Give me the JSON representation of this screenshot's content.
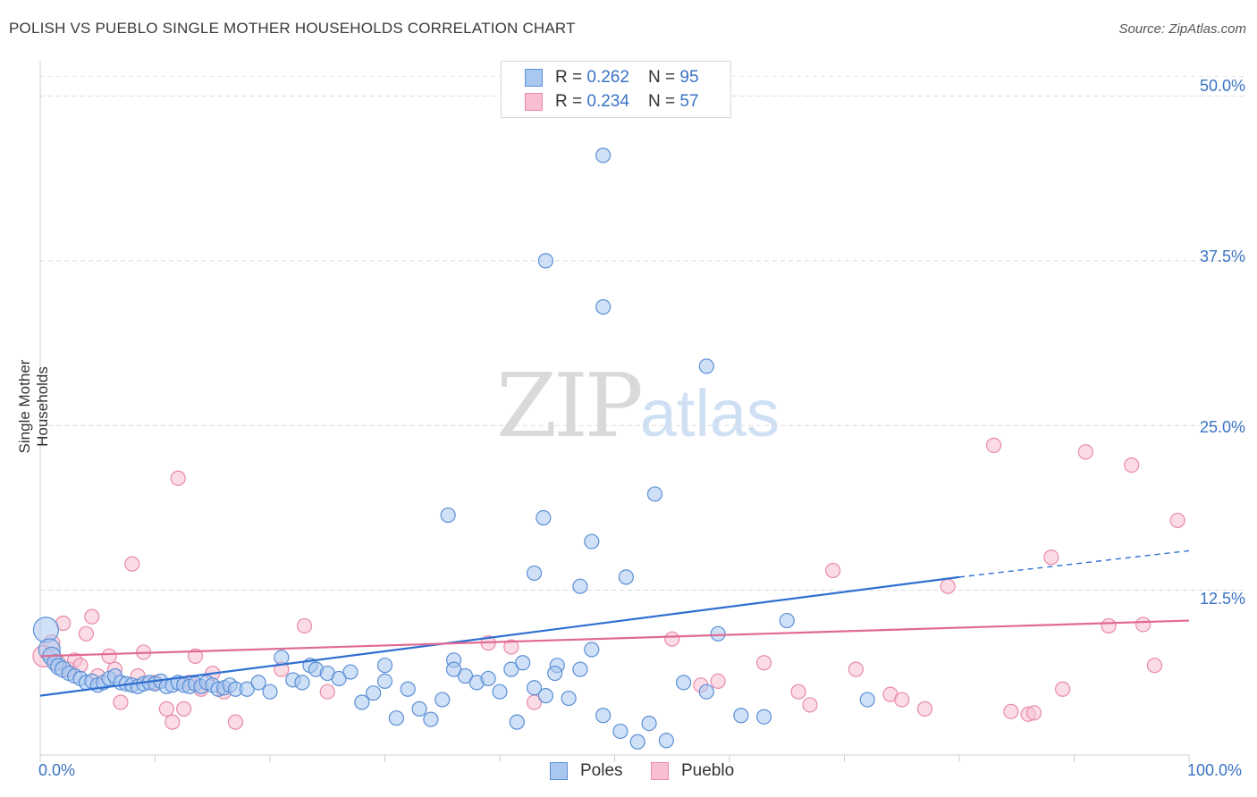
{
  "header": {
    "title": "POLISH VS PUEBLO SINGLE MOTHER HOUSEHOLDS CORRELATION CHART",
    "source": "Source: ZipAtlas.com"
  },
  "watermark": {
    "zip": "ZIP",
    "atlas": "atlas"
  },
  "legend": {
    "rows": [
      {
        "r_label": "R = ",
        "r_value": "0.262",
        "n_label": "N = ",
        "n_value": "95"
      },
      {
        "r_label": "R = ",
        "r_value": "0.234",
        "n_label": "N = ",
        "n_value": "57"
      }
    ],
    "bottom": [
      "Poles",
      "Pueblo"
    ]
  },
  "colors": {
    "poles_fill": "#a9c8f0",
    "poles_stroke": "#5b8fd6",
    "poles_line": "#2f6fd0",
    "pueblo_fill": "#f7bfcf",
    "pueblo_stroke": "#e98aa8",
    "pueblo_line": "#e06a92",
    "tick_text": "#3a73c4",
    "grid": "#dcdcdc"
  },
  "chart_data": {
    "type": "scatter",
    "title": "POLISH VS PUEBLO SINGLE MOTHER HOUSEHOLDS CORRELATION CHART",
    "xlabel": "",
    "ylabel": "Single Mother Households",
    "xlim": [
      0,
      100
    ],
    "ylim": [
      0,
      52
    ],
    "x_tick_labels": [
      "0.0%",
      "100.0%"
    ],
    "y_ticks": [
      12.5,
      25.0,
      37.5,
      50.0
    ],
    "y_tick_labels": [
      "12.5%",
      "25.0%",
      "37.5%",
      "50.0%"
    ],
    "grid": "dashed horizontal",
    "legend_placement": "top-center",
    "series": [
      {
        "name": "Poles",
        "trend": {
          "x": [
            0,
            80
          ],
          "y": [
            4.5,
            13.5
          ],
          "dashed_to": [
            100,
            15.5
          ]
        },
        "points": [
          [
            0.5,
            9.5,
            14
          ],
          [
            0.8,
            8.0,
            12
          ],
          [
            1.0,
            7.5,
            10
          ],
          [
            1.3,
            7.0,
            9
          ],
          [
            1.6,
            6.7,
            9
          ],
          [
            2.0,
            6.5,
            9
          ],
          [
            2.5,
            6.2,
            8
          ],
          [
            3.0,
            6.0,
            8
          ],
          [
            3.5,
            5.8,
            8
          ],
          [
            4.0,
            5.5,
            8
          ],
          [
            4.5,
            5.6,
            8
          ],
          [
            5.0,
            5.3,
            8
          ],
          [
            5.5,
            5.5,
            8
          ],
          [
            6.0,
            5.8,
            8
          ],
          [
            6.5,
            6.0,
            8
          ],
          [
            7.0,
            5.5,
            8
          ],
          [
            7.5,
            5.4,
            8
          ],
          [
            8.0,
            5.3,
            8
          ],
          [
            8.5,
            5.2,
            8
          ],
          [
            9.0,
            5.4,
            8
          ],
          [
            9.5,
            5.5,
            8
          ],
          [
            10.0,
            5.4,
            8
          ],
          [
            10.5,
            5.6,
            8
          ],
          [
            11.0,
            5.2,
            8
          ],
          [
            11.5,
            5.3,
            8
          ],
          [
            12.0,
            5.5,
            8
          ],
          [
            12.5,
            5.3,
            8
          ],
          [
            13.0,
            5.2,
            8
          ],
          [
            13.5,
            5.4,
            8
          ],
          [
            14.0,
            5.2,
            8
          ],
          [
            14.5,
            5.5,
            8
          ],
          [
            15.0,
            5.3,
            8
          ],
          [
            15.5,
            5.0,
            8
          ],
          [
            16.0,
            5.1,
            8
          ],
          [
            16.5,
            5.3,
            8
          ],
          [
            17.0,
            5.0,
            8
          ],
          [
            18.0,
            5.0,
            8
          ],
          [
            19.0,
            5.5,
            8
          ],
          [
            20.0,
            4.8,
            8
          ],
          [
            21.0,
            7.4,
            8
          ],
          [
            22.0,
            5.7,
            8
          ],
          [
            22.8,
            5.5,
            8
          ],
          [
            23.5,
            6.8,
            8
          ],
          [
            24.0,
            6.5,
            8
          ],
          [
            25.0,
            6.2,
            8
          ],
          [
            26.0,
            5.8,
            8
          ],
          [
            27.0,
            6.3,
            8
          ],
          [
            28.0,
            4.0,
            8
          ],
          [
            29.0,
            4.7,
            8
          ],
          [
            30.0,
            5.6,
            8
          ],
          [
            31.0,
            2.8,
            8
          ],
          [
            32.0,
            5.0,
            8
          ],
          [
            33.0,
            3.5,
            8
          ],
          [
            34.0,
            2.7,
            8
          ],
          [
            35.0,
            4.2,
            8
          ],
          [
            36.0,
            7.2,
            8
          ],
          [
            37.0,
            6.0,
            8
          ],
          [
            38.0,
            5.5,
            8
          ],
          [
            39.0,
            5.8,
            8
          ],
          [
            40.0,
            4.8,
            8
          ],
          [
            41.0,
            6.5,
            8
          ],
          [
            42.0,
            7.0,
            8
          ],
          [
            43.0,
            5.1,
            8
          ],
          [
            44.0,
            4.5,
            8
          ],
          [
            45.0,
            6.8,
            8
          ],
          [
            46.0,
            4.3,
            8
          ],
          [
            47.0,
            6.5,
            8
          ],
          [
            48.0,
            8.0,
            8
          ],
          [
            49.0,
            3.0,
            8
          ],
          [
            50.5,
            1.8,
            8
          ],
          [
            51.0,
            13.5,
            8
          ],
          [
            52.0,
            1.0,
            8
          ],
          [
            53.0,
            2.4,
            8
          ],
          [
            54.5,
            1.1,
            8
          ],
          [
            56.0,
            5.5,
            8
          ],
          [
            58.0,
            4.8,
            8
          ],
          [
            59.0,
            9.2,
            8
          ],
          [
            61.0,
            3.0,
            8
          ],
          [
            63.0,
            2.9,
            8
          ],
          [
            65.0,
            10.2,
            8
          ],
          [
            72.0,
            4.2,
            8
          ],
          [
            49.0,
            34.0,
            8
          ],
          [
            43.0,
            13.8,
            8
          ],
          [
            47.0,
            12.8,
            8
          ],
          [
            35.5,
            18.2,
            8
          ],
          [
            53.5,
            19.8,
            8
          ],
          [
            48.0,
            16.2,
            8
          ],
          [
            58.0,
            29.5,
            8
          ],
          [
            43.8,
            18.0,
            8
          ],
          [
            36.0,
            6.5,
            8
          ],
          [
            30.0,
            6.8,
            8
          ],
          [
            41.5,
            2.5,
            8
          ],
          [
            44.8,
            6.2,
            8
          ],
          [
            49.0,
            45.5,
            8
          ],
          [
            44.0,
            37.5,
            8
          ]
        ]
      },
      {
        "name": "Pueblo",
        "trend": {
          "x": [
            0,
            100
          ],
          "y": [
            7.5,
            10.2
          ]
        },
        "points": [
          [
            0.3,
            7.5,
            12
          ],
          [
            1.0,
            8.5,
            9
          ],
          [
            1.5,
            7.0,
            9
          ],
          [
            2.0,
            10.0,
            8
          ],
          [
            2.5,
            6.5,
            8
          ],
          [
            3.0,
            7.2,
            8
          ],
          [
            3.5,
            6.8,
            8
          ],
          [
            4.0,
            9.2,
            8
          ],
          [
            4.5,
            10.5,
            8
          ],
          [
            5.0,
            6.0,
            8
          ],
          [
            6.0,
            7.5,
            8
          ],
          [
            6.5,
            6.5,
            8
          ],
          [
            7.0,
            4.0,
            8
          ],
          [
            8.0,
            14.5,
            8
          ],
          [
            8.5,
            6.0,
            8
          ],
          [
            9.0,
            7.8,
            8
          ],
          [
            10.0,
            5.5,
            8
          ],
          [
            11.0,
            3.5,
            8
          ],
          [
            11.5,
            2.5,
            8
          ],
          [
            12.0,
            21.0,
            8
          ],
          [
            12.5,
            3.5,
            8
          ],
          [
            13.0,
            5.5,
            8
          ],
          [
            13.5,
            7.5,
            8
          ],
          [
            14.0,
            5.0,
            8
          ],
          [
            15.0,
            6.2,
            8
          ],
          [
            16.0,
            4.8,
            8
          ],
          [
            17.0,
            2.5,
            8
          ],
          [
            21.0,
            6.5,
            8
          ],
          [
            23.0,
            9.8,
            8
          ],
          [
            25.0,
            4.8,
            8
          ],
          [
            39.0,
            8.5,
            8
          ],
          [
            41.0,
            8.2,
            8
          ],
          [
            43.0,
            4.0,
            8
          ],
          [
            55.0,
            8.8,
            8
          ],
          [
            57.5,
            5.3,
            8
          ],
          [
            59.0,
            5.6,
            8
          ],
          [
            63.0,
            7.0,
            8
          ],
          [
            66.0,
            4.8,
            8
          ],
          [
            67.0,
            3.8,
            8
          ],
          [
            69.0,
            14.0,
            8
          ],
          [
            71.0,
            6.5,
            8
          ],
          [
            74.0,
            4.6,
            8
          ],
          [
            75.0,
            4.2,
            8
          ],
          [
            77.0,
            3.5,
            8
          ],
          [
            79.0,
            12.8,
            8
          ],
          [
            83.0,
            23.5,
            8
          ],
          [
            84.5,
            3.3,
            8
          ],
          [
            86.0,
            3.1,
            8
          ],
          [
            88.0,
            15.0,
            8
          ],
          [
            89.0,
            5.0,
            8
          ],
          [
            91.0,
            23.0,
            8
          ],
          [
            93.0,
            9.8,
            8
          ],
          [
            95.0,
            22.0,
            8
          ],
          [
            96.0,
            9.9,
            8
          ],
          [
            97.0,
            6.8,
            8
          ],
          [
            99.0,
            17.8,
            8
          ],
          [
            86.5,
            3.2,
            8
          ]
        ]
      }
    ]
  }
}
